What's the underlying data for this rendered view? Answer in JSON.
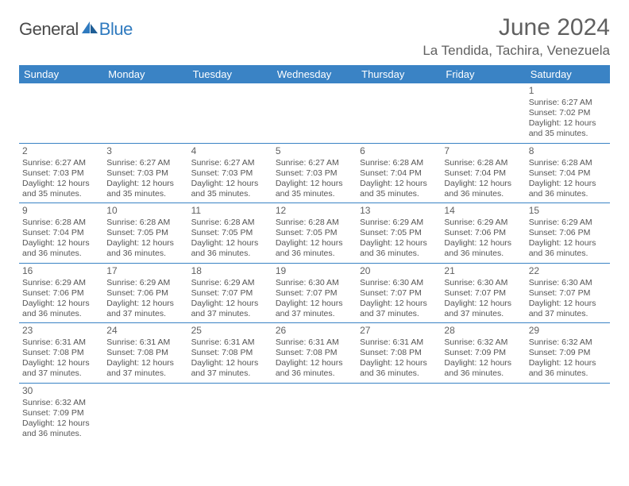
{
  "logo": {
    "general": "General",
    "blue": "Blue"
  },
  "title": "June 2024",
  "location": "La Tendida, Tachira, Venezuela",
  "dayHeaders": [
    "Sunday",
    "Monday",
    "Tuesday",
    "Wednesday",
    "Thursday",
    "Friday",
    "Saturday"
  ],
  "colors": {
    "headerBg": "#3a83c5",
    "headerText": "#ffffff",
    "borderColor": "#3a83c5",
    "titleColor": "#606060",
    "bodyText": "#555555",
    "logoBlue": "#2f7abf",
    "logoGray": "#4a4a4a",
    "background": "#ffffff"
  },
  "calendar": {
    "type": "table",
    "columns": 7,
    "cellFontSize": 10.5,
    "headerFontSize": 13,
    "rows": [
      [
        null,
        null,
        null,
        null,
        null,
        null,
        {
          "n": "1",
          "sr": "6:27 AM",
          "ss": "7:02 PM",
          "dl1": "12 hours",
          "dl2": "and 35 minutes."
        }
      ],
      [
        {
          "n": "2",
          "sr": "6:27 AM",
          "ss": "7:03 PM",
          "dl1": "12 hours",
          "dl2": "and 35 minutes."
        },
        {
          "n": "3",
          "sr": "6:27 AM",
          "ss": "7:03 PM",
          "dl1": "12 hours",
          "dl2": "and 35 minutes."
        },
        {
          "n": "4",
          "sr": "6:27 AM",
          "ss": "7:03 PM",
          "dl1": "12 hours",
          "dl2": "and 35 minutes."
        },
        {
          "n": "5",
          "sr": "6:27 AM",
          "ss": "7:03 PM",
          "dl1": "12 hours",
          "dl2": "and 35 minutes."
        },
        {
          "n": "6",
          "sr": "6:28 AM",
          "ss": "7:04 PM",
          "dl1": "12 hours",
          "dl2": "and 35 minutes."
        },
        {
          "n": "7",
          "sr": "6:28 AM",
          "ss": "7:04 PM",
          "dl1": "12 hours",
          "dl2": "and 36 minutes."
        },
        {
          "n": "8",
          "sr": "6:28 AM",
          "ss": "7:04 PM",
          "dl1": "12 hours",
          "dl2": "and 36 minutes."
        }
      ],
      [
        {
          "n": "9",
          "sr": "6:28 AM",
          "ss": "7:04 PM",
          "dl1": "12 hours",
          "dl2": "and 36 minutes."
        },
        {
          "n": "10",
          "sr": "6:28 AM",
          "ss": "7:05 PM",
          "dl1": "12 hours",
          "dl2": "and 36 minutes."
        },
        {
          "n": "11",
          "sr": "6:28 AM",
          "ss": "7:05 PM",
          "dl1": "12 hours",
          "dl2": "and 36 minutes."
        },
        {
          "n": "12",
          "sr": "6:28 AM",
          "ss": "7:05 PM",
          "dl1": "12 hours",
          "dl2": "and 36 minutes."
        },
        {
          "n": "13",
          "sr": "6:29 AM",
          "ss": "7:05 PM",
          "dl1": "12 hours",
          "dl2": "and 36 minutes."
        },
        {
          "n": "14",
          "sr": "6:29 AM",
          "ss": "7:06 PM",
          "dl1": "12 hours",
          "dl2": "and 36 minutes."
        },
        {
          "n": "15",
          "sr": "6:29 AM",
          "ss": "7:06 PM",
          "dl1": "12 hours",
          "dl2": "and 36 minutes."
        }
      ],
      [
        {
          "n": "16",
          "sr": "6:29 AM",
          "ss": "7:06 PM",
          "dl1": "12 hours",
          "dl2": "and 36 minutes."
        },
        {
          "n": "17",
          "sr": "6:29 AM",
          "ss": "7:06 PM",
          "dl1": "12 hours",
          "dl2": "and 37 minutes."
        },
        {
          "n": "18",
          "sr": "6:29 AM",
          "ss": "7:07 PM",
          "dl1": "12 hours",
          "dl2": "and 37 minutes."
        },
        {
          "n": "19",
          "sr": "6:30 AM",
          "ss": "7:07 PM",
          "dl1": "12 hours",
          "dl2": "and 37 minutes."
        },
        {
          "n": "20",
          "sr": "6:30 AM",
          "ss": "7:07 PM",
          "dl1": "12 hours",
          "dl2": "and 37 minutes."
        },
        {
          "n": "21",
          "sr": "6:30 AM",
          "ss": "7:07 PM",
          "dl1": "12 hours",
          "dl2": "and 37 minutes."
        },
        {
          "n": "22",
          "sr": "6:30 AM",
          "ss": "7:07 PM",
          "dl1": "12 hours",
          "dl2": "and 37 minutes."
        }
      ],
      [
        {
          "n": "23",
          "sr": "6:31 AM",
          "ss": "7:08 PM",
          "dl1": "12 hours",
          "dl2": "and 37 minutes."
        },
        {
          "n": "24",
          "sr": "6:31 AM",
          "ss": "7:08 PM",
          "dl1": "12 hours",
          "dl2": "and 37 minutes."
        },
        {
          "n": "25",
          "sr": "6:31 AM",
          "ss": "7:08 PM",
          "dl1": "12 hours",
          "dl2": "and 37 minutes."
        },
        {
          "n": "26",
          "sr": "6:31 AM",
          "ss": "7:08 PM",
          "dl1": "12 hours",
          "dl2": "and 36 minutes."
        },
        {
          "n": "27",
          "sr": "6:31 AM",
          "ss": "7:08 PM",
          "dl1": "12 hours",
          "dl2": "and 36 minutes."
        },
        {
          "n": "28",
          "sr": "6:32 AM",
          "ss": "7:09 PM",
          "dl1": "12 hours",
          "dl2": "and 36 minutes."
        },
        {
          "n": "29",
          "sr": "6:32 AM",
          "ss": "7:09 PM",
          "dl1": "12 hours",
          "dl2": "and 36 minutes."
        }
      ],
      [
        {
          "n": "30",
          "sr": "6:32 AM",
          "ss": "7:09 PM",
          "dl1": "12 hours",
          "dl2": "and 36 minutes."
        },
        null,
        null,
        null,
        null,
        null,
        null
      ]
    ],
    "labels": {
      "sunrise": "Sunrise:",
      "sunset": "Sunset:",
      "daylight": "Daylight:"
    }
  }
}
